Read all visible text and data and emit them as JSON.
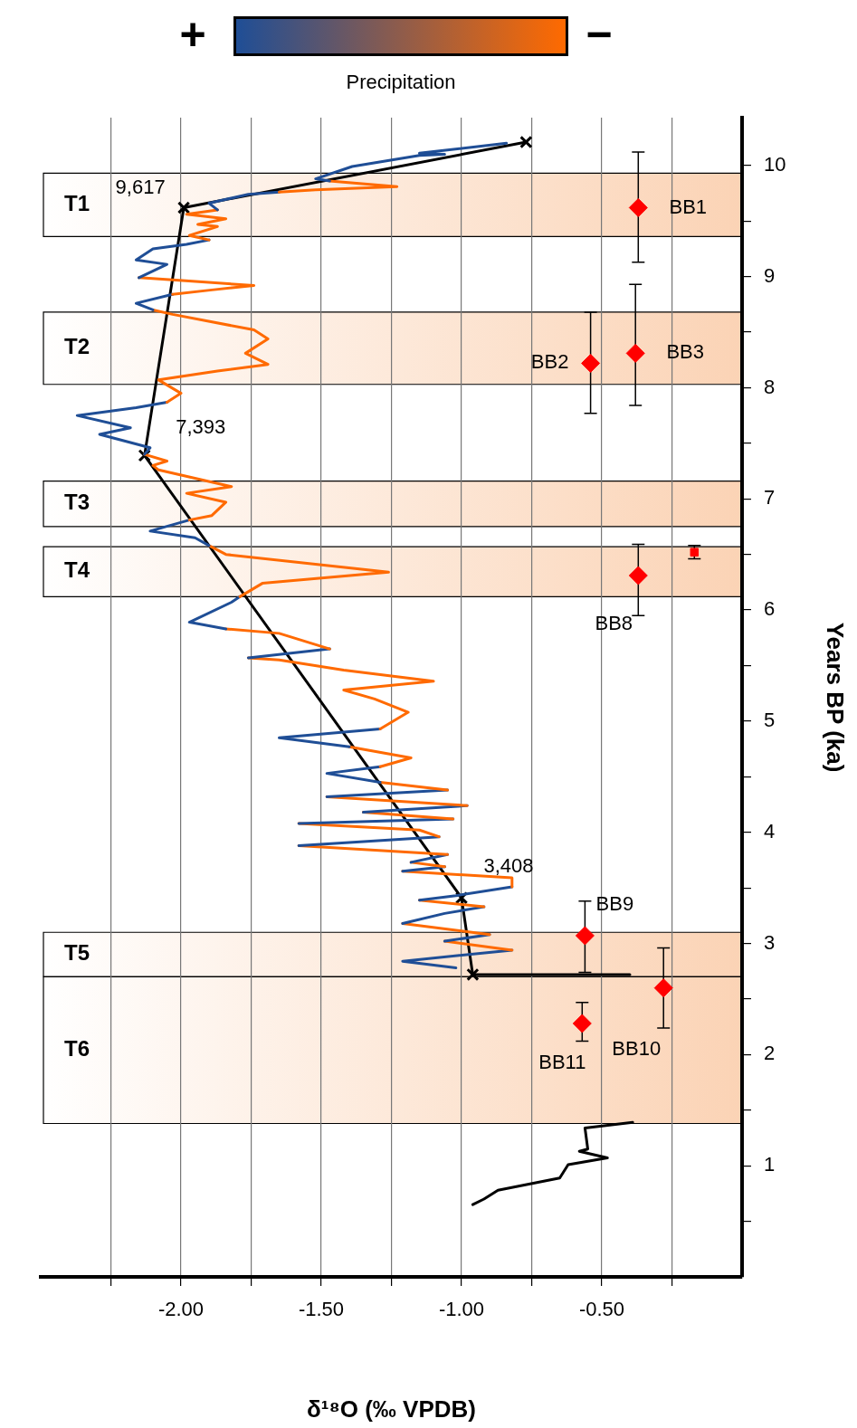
{
  "chart_data": {
    "type": "line",
    "xlabel": "δ¹⁸O (‰ VPDB)",
    "ylabel": "Years BP (ka)",
    "clabel": "Precipitation",
    "xlim": [
      -2.5,
      0
    ],
    "ylim": [
      0,
      10.43
    ],
    "yticks": [
      {
        "value": 0.5,
        "label": null
      },
      1,
      {
        "value": 1.5,
        "label": null
      },
      2,
      {
        "value": 2.5,
        "label": null
      },
      3,
      {
        "value": 3.5,
        "label": null
      },
      4,
      {
        "value": 4.5,
        "label": null
      },
      5,
      {
        "value": 5.5,
        "label": null
      },
      6,
      {
        "value": 6.5,
        "label": null
      },
      7,
      {
        "value": 7.5,
        "label": null
      },
      8,
      {
        "value": 8.5,
        "label": null
      },
      9,
      {
        "value": 9.5,
        "label": null
      },
      10
    ],
    "xticks": [
      {
        "value": -2.25,
        "label": null
      },
      {
        "value": -2,
        "label": "-2.00"
      },
      {
        "value": -1.75,
        "label": null
      },
      {
        "value": -1.5,
        "label": "-1.50"
      },
      {
        "value": -1.25,
        "label": null
      },
      {
        "value": -1,
        "label": "-1.00"
      },
      {
        "value": -0.75,
        "label": null
      },
      {
        "value": -0.5,
        "label": "-0.50"
      },
      {
        "value": -0.25,
        "label": null
      }
    ],
    "grid": "x",
    "series": [
      {
        "color": "#1f4e96",
        "x": [
          -0.84,
          -1.15,
          -1.06,
          -1.15,
          -1.39,
          -1.52,
          -1.47
        ],
        "values": [
          10.2,
          10.11,
          10.1,
          10.09,
          9.99,
          9.88,
          9.86
        ]
      },
      {
        "color": "#ff6a00",
        "x": [
          -1.47,
          -1.23,
          -1.52,
          -1.65
        ],
        "values": [
          9.86,
          9.81,
          9.78,
          9.76
        ]
      },
      {
        "color": "#1f4e96",
        "x": [
          -1.65,
          -1.76,
          -1.9,
          -1.87
        ],
        "values": [
          9.76,
          9.74,
          9.66,
          9.6
        ]
      },
      {
        "color": "#ff6a00",
        "x": [
          -1.87,
          -1.98,
          -1.84,
          -1.94,
          -1.87,
          -1.97,
          -1.9
        ],
        "values": [
          9.6,
          9.56,
          9.52,
          9.47,
          9.45,
          9.37,
          9.33
        ]
      },
      {
        "color": "#1f4e96",
        "x": [
          -1.9,
          -1.98,
          -2.1,
          -2.16,
          -2.05,
          -2.15
        ],
        "values": [
          9.33,
          9.29,
          9.25,
          9.15,
          9.11,
          8.99
        ]
      },
      {
        "color": "#ff6a00",
        "x": [
          -2.15,
          -2.03,
          -1.74,
          -1.89,
          -2.03
        ],
        "values": [
          8.99,
          8.97,
          8.92,
          8.88,
          8.84
        ]
      },
      {
        "color": "#1f4e96",
        "x": [
          -2.03,
          -2.16,
          -2.1
        ],
        "values": [
          8.84,
          8.76,
          8.7
        ]
      },
      {
        "color": "#ff6a00",
        "x": [
          -2.1,
          -2.03,
          -1.74,
          -1.69,
          -1.77,
          -1.69,
          -1.87,
          -2.08,
          -2.0,
          -2.05
        ],
        "values": [
          8.7,
          8.66,
          8.52,
          8.44,
          8.31,
          8.21,
          8.15,
          8.07,
          7.95,
          7.87
        ]
      },
      {
        "color": "#1f4e96",
        "x": [
          -2.05,
          -2.16,
          -2.37,
          -2.18,
          -2.29,
          -2.11,
          -2.13
        ],
        "values": [
          7.87,
          7.82,
          7.75,
          7.64,
          7.58,
          7.46,
          7.4
        ]
      },
      {
        "color": "#ff6a00",
        "x": [
          -2.13,
          -2.05,
          -2.1,
          -2.08,
          -1.82,
          -1.98,
          -1.84,
          -1.89,
          -1.97
        ],
        "values": [
          7.4,
          7.34,
          7.3,
          7.26,
          7.11,
          7.05,
          6.97,
          6.85,
          6.81
        ]
      },
      {
        "color": "#1f4e96",
        "x": [
          -1.97,
          -2.11,
          -1.95,
          -1.9
        ],
        "values": [
          6.81,
          6.71,
          6.65,
          6.58
        ]
      },
      {
        "color": "#ff6a00",
        "x": [
          -1.9,
          -1.84,
          -1.26,
          -1.71,
          -1.79
        ],
        "values": [
          6.58,
          6.5,
          6.34,
          6.24,
          6.12
        ]
      },
      {
        "color": "#1f4e96",
        "x": [
          -1.79,
          -1.82,
          -1.97,
          -1.84
        ],
        "values": [
          6.12,
          6.07,
          5.89,
          5.83
        ]
      },
      {
        "color": "#ff6a00",
        "x": [
          -1.84,
          -1.65,
          -1.47
        ],
        "values": [
          5.83,
          5.79,
          5.65
        ]
      },
      {
        "color": "#1f4e96",
        "x": [
          -1.47,
          -1.76
        ],
        "values": [
          5.65,
          5.57
        ]
      },
      {
        "color": "#ff6a00",
        "x": [
          -1.76,
          -1.65,
          -1.42,
          -1.1,
          -1.42,
          -1.31,
          -1.19,
          -1.29
        ],
        "values": [
          5.57,
          5.55,
          5.46,
          5.36,
          5.28,
          5.2,
          5.08,
          4.93
        ]
      },
      {
        "color": "#1f4e96",
        "x": [
          -1.29,
          -1.65,
          -1.4
        ],
        "values": [
          4.93,
          4.85,
          4.77
        ]
      },
      {
        "color": "#ff6a00",
        "x": [
          -1.4,
          -1.18,
          -1.29
        ],
        "values": [
          4.77,
          4.67,
          4.59
        ]
      },
      {
        "color": "#1f4e96",
        "x": [
          -1.29,
          -1.48,
          -1.29
        ],
        "values": [
          4.59,
          4.53,
          4.45
        ]
      },
      {
        "color": "#ff6a00",
        "x": [
          -1.29,
          -1.05
        ],
        "values": [
          4.45,
          4.38
        ]
      },
      {
        "color": "#1f4e96",
        "x": [
          -1.05,
          -1.48
        ],
        "values": [
          4.38,
          4.32
        ]
      },
      {
        "color": "#ff6a00",
        "x": [
          -1.48,
          -0.98
        ],
        "values": [
          4.32,
          4.24
        ]
      },
      {
        "color": "#1f4e96",
        "x": [
          -0.98,
          -1.35
        ],
        "values": [
          4.24,
          4.18
        ]
      },
      {
        "color": "#ff6a00",
        "x": [
          -1.35,
          -1.03
        ],
        "values": [
          4.18,
          4.12
        ]
      },
      {
        "color": "#1f4e96",
        "x": [
          -1.03,
          -1.58
        ],
        "values": [
          4.12,
          4.08
        ]
      },
      {
        "color": "#ff6a00",
        "x": [
          -1.58,
          -1.15,
          -1.08
        ],
        "values": [
          4.08,
          4.02,
          3.96
        ]
      },
      {
        "color": "#1f4e96",
        "x": [
          -1.08,
          -1.58
        ],
        "values": [
          3.96,
          3.88
        ]
      },
      {
        "color": "#ff6a00",
        "x": [
          -1.58,
          -1.05
        ],
        "values": [
          3.88,
          3.8
        ]
      },
      {
        "color": "#1f4e96",
        "x": [
          -1.05,
          -1.18
        ],
        "values": [
          3.8,
          3.73
        ]
      },
      {
        "color": "#ff6a00",
        "x": [
          -1.18,
          -1.06
        ],
        "values": [
          3.73,
          3.69
        ]
      },
      {
        "color": "#1f4e96",
        "x": [
          -1.06,
          -1.21
        ],
        "values": [
          3.69,
          3.65
        ]
      },
      {
        "color": "#ff6a00",
        "x": [
          -1.21,
          -0.82,
          -0.82
        ],
        "values": [
          3.65,
          3.59,
          3.51
        ]
      },
      {
        "color": "#1f4e96",
        "x": [
          -0.82,
          -1.02,
          -1.15
        ],
        "values": [
          3.51,
          3.43,
          3.39
        ]
      },
      {
        "color": "#ff6a00",
        "x": [
          -1.15,
          -0.92
        ],
        "values": [
          3.39,
          3.33
        ]
      },
      {
        "color": "#1f4e96",
        "x": [
          -0.92,
          -1.06,
          -1.21
        ],
        "values": [
          3.33,
          3.27,
          3.18
        ]
      },
      {
        "color": "#ff6a00",
        "x": [
          -1.21,
          -0.9
        ],
        "values": [
          3.18,
          3.08
        ]
      },
      {
        "color": "#1f4e96",
        "x": [
          -0.9,
          -1.06
        ],
        "values": [
          3.08,
          3.02
        ]
      },
      {
        "color": "#ff6a00",
        "x": [
          -1.06,
          -0.82
        ],
        "values": [
          3.02,
          2.94
        ]
      },
      {
        "color": "#1f4e96",
        "x": [
          -0.82,
          -1.21,
          -1.02
        ],
        "values": [
          2.94,
          2.84,
          2.78
        ]
      },
      {
        "marker": "cross",
        "color": "#000000",
        "values": [
          10.21,
          9.62,
          7.39,
          3.41,
          2.72
        ],
        "x": [
          -0.77,
          -1.99,
          -2.13,
          -1.0,
          -0.96
        ]
      },
      {
        "color": "#000000",
        "values": [
          2.72,
          2.72
        ],
        "x": [
          -0.96,
          -0.4
        ]
      },
      {
        "color": "#000000",
        "values": [
          1.39,
          1.34,
          1.15,
          1.13,
          1.07,
          1.01,
          0.89,
          0.78,
          0.7,
          0.65
        ],
        "x": [
          -0.39,
          -0.56,
          -0.55,
          -0.58,
          -0.48,
          -0.62,
          -0.65,
          -0.87,
          -0.92,
          -0.96
        ]
      },
      {
        "type": "scatter",
        "marker": "diamond",
        "color": "#ff0000",
        "values": [
          9.62,
          8.22,
          8.31,
          6.31,
          3.07,
          2.6,
          2.28
        ],
        "x": [
          -0.37,
          -0.54,
          -0.38,
          -0.37,
          -0.56,
          -0.28,
          -0.57
        ],
        "errors": [
          [
            9.13,
            10.12
          ],
          [
            7.77,
            8.68
          ],
          [
            7.84,
            8.93
          ],
          [
            5.95,
            6.59
          ],
          [
            2.74,
            3.38
          ],
          [
            2.24,
            2.96
          ],
          [
            2.12,
            2.47
          ]
        ]
      },
      {
        "type": "scatter",
        "marker": "square",
        "color": "#ff0000",
        "values": [
          6.52
        ],
        "x": [
          -0.17
        ],
        "errors": [
          [
            6.46,
            6.58
          ]
        ]
      }
    ],
    "bands": [
      {
        "axis": "y",
        "from": 9.36,
        "to": 9.93,
        "label": "T1",
        "color": "#fbd3b5"
      },
      {
        "axis": "y",
        "from": 8.03,
        "to": 8.68,
        "label": "T2",
        "color": "#fbd3b5"
      },
      {
        "axis": "y",
        "from": 6.75,
        "to": 7.16,
        "label": "T3",
        "color": "#fbd3b5"
      },
      {
        "axis": "y",
        "from": 6.12,
        "to": 6.57,
        "label": "T4",
        "color": "#fbd3b5"
      },
      {
        "axis": "y",
        "from": 2.7,
        "to": 3.1,
        "label": "T5",
        "color": "#fbd3b5"
      },
      {
        "axis": "y",
        "from": 1.38,
        "to": 2.7,
        "label": "T6",
        "color": "#fbd3b5"
      }
    ],
    "annotations": [
      "+",
      "−",
      {
        "text": "9,617",
        "x": -1.99,
        "y": 9.62
      },
      {
        "text": "7,393",
        "x": -2.13,
        "y": 7.39
      },
      {
        "text": "3,408",
        "x": -1.0,
        "y": 3.41
      },
      {
        "text": "BB1",
        "x": -0.37,
        "y": 9.62
      },
      {
        "text": "BB2",
        "x": -0.54,
        "y": 8.22
      },
      {
        "text": "BB3",
        "x": -0.38,
        "y": 8.31
      },
      {
        "text": "BB8",
        "x": -0.37,
        "y": 6.31
      },
      {
        "text": "BB9",
        "x": -0.56,
        "y": 3.07
      },
      {
        "text": "BB10",
        "x": -0.28,
        "y": 2.6
      },
      {
        "text": "BB11",
        "x": -0.57,
        "y": 2.28
      }
    ]
  }
}
